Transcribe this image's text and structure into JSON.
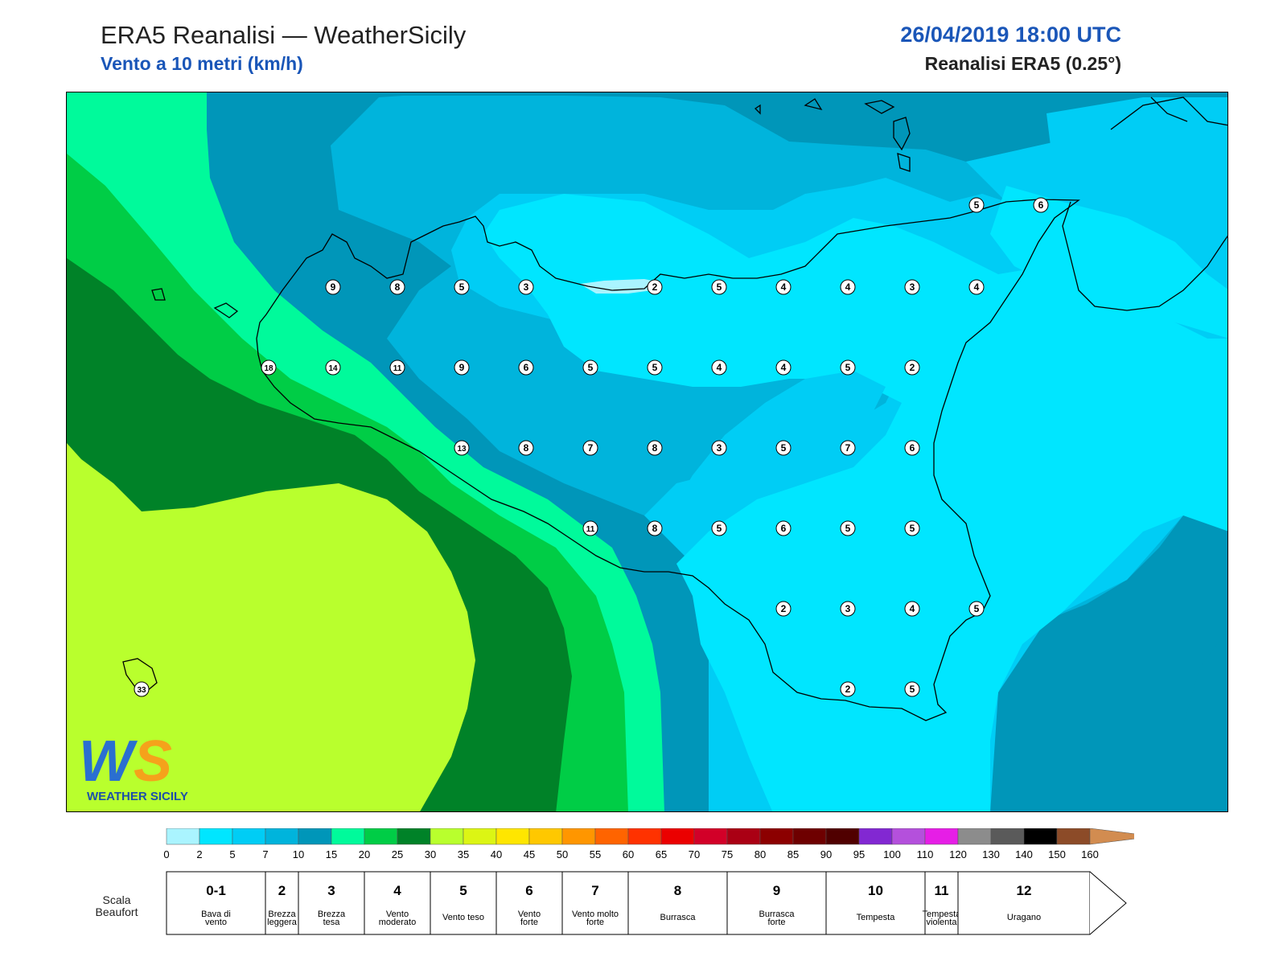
{
  "header": {
    "title": "ERA5 Reanalisi — WeatherSicily",
    "subtitle": "Vento a 10 metri (km/h)",
    "datetime": "26/04/2019 18:00 UTC",
    "model": "Reanalisi ERA5 (0.25°)"
  },
  "logo": {
    "letters": "WS",
    "text": "WEATHER SICILY",
    "colors": {
      "w": "#2a6fd0",
      "s": "#f5a21b",
      "text": "#1d4fa8"
    }
  },
  "map_colors": {
    "light_cyan": "#aaf4ff",
    "cyan": "#00e6ff",
    "sky": "#00cdf5",
    "mid_blue": "#00b4dc",
    "teal": "#0096b9",
    "aqua_green": "#00fa9b",
    "green": "#00cd46",
    "dark_green": "#008228",
    "lime": "#b9ff2d",
    "coast": "#000000"
  },
  "stations": [
    {
      "v": "9",
      "c": [
        413,
        356
      ]
    },
    {
      "v": "8",
      "c": [
        493,
        356
      ]
    },
    {
      "v": "5",
      "c": [
        573,
        356
      ]
    },
    {
      "v": "3",
      "c": [
        653,
        356
      ]
    },
    {
      "v": "2",
      "c": [
        813,
        356
      ]
    },
    {
      "v": "5",
      "c": [
        893,
        356
      ]
    },
    {
      "v": "4",
      "c": [
        973,
        356
      ]
    },
    {
      "v": "4",
      "c": [
        1053,
        356
      ]
    },
    {
      "v": "3",
      "c": [
        1133,
        356
      ]
    },
    {
      "v": "4",
      "c": [
        1213,
        356
      ]
    },
    {
      "v": "18",
      "c": [
        333,
        456
      ]
    },
    {
      "v": "14",
      "c": [
        413,
        456
      ]
    },
    {
      "v": "11",
      "c": [
        493,
        456
      ]
    },
    {
      "v": "9",
      "c": [
        573,
        456
      ]
    },
    {
      "v": "6",
      "c": [
        653,
        456
      ]
    },
    {
      "v": "5",
      "c": [
        733,
        456
      ]
    },
    {
      "v": "5",
      "c": [
        813,
        456
      ]
    },
    {
      "v": "4",
      "c": [
        893,
        456
      ]
    },
    {
      "v": "4",
      "c": [
        973,
        456
      ]
    },
    {
      "v": "5",
      "c": [
        1053,
        456
      ]
    },
    {
      "v": "2",
      "c": [
        1133,
        456
      ]
    },
    {
      "v": "13",
      "c": [
        573,
        556
      ]
    },
    {
      "v": "8",
      "c": [
        653,
        556
      ]
    },
    {
      "v": "7",
      "c": [
        733,
        556
      ]
    },
    {
      "v": "8",
      "c": [
        813,
        556
      ]
    },
    {
      "v": "3",
      "c": [
        893,
        556
      ]
    },
    {
      "v": "5",
      "c": [
        973,
        556
      ]
    },
    {
      "v": "7",
      "c": [
        1053,
        556
      ]
    },
    {
      "v": "6",
      "c": [
        1133,
        556
      ]
    },
    {
      "v": "11",
      "c": [
        733,
        656
      ]
    },
    {
      "v": "8",
      "c": [
        813,
        656
      ]
    },
    {
      "v": "5",
      "c": [
        893,
        656
      ]
    },
    {
      "v": "6",
      "c": [
        973,
        656
      ]
    },
    {
      "v": "5",
      "c": [
        1053,
        656
      ]
    },
    {
      "v": "5",
      "c": [
        1133,
        656
      ]
    },
    {
      "v": "2",
      "c": [
        973,
        756
      ]
    },
    {
      "v": "3",
      "c": [
        1053,
        756
      ]
    },
    {
      "v": "4",
      "c": [
        1133,
        756
      ]
    },
    {
      "v": "5",
      "c": [
        1213,
        756
      ]
    },
    {
      "v": "2",
      "c": [
        1053,
        856
      ]
    },
    {
      "v": "5",
      "c": [
        1133,
        856
      ]
    },
    {
      "v": "5",
      "c": [
        1213,
        254
      ]
    },
    {
      "v": "6",
      "c": [
        1293,
        254
      ]
    },
    {
      "v": "33",
      "c": [
        175,
        856
      ]
    }
  ],
  "colorbar": {
    "bins": [
      {
        "from": "0",
        "color": "#aaf4ff"
      },
      {
        "from": "2",
        "color": "#00e6ff"
      },
      {
        "from": "5",
        "color": "#00cdf5"
      },
      {
        "from": "7",
        "color": "#00b4dc"
      },
      {
        "from": "10",
        "color": "#0096b9"
      },
      {
        "from": "15",
        "color": "#00fa9b"
      },
      {
        "from": "20",
        "color": "#00cd46"
      },
      {
        "from": "25",
        "color": "#008228"
      },
      {
        "from": "30",
        "color": "#b9ff2d"
      },
      {
        "from": "35",
        "color": "#dcf514"
      },
      {
        "from": "40",
        "color": "#ffe600"
      },
      {
        "from": "45",
        "color": "#ffc800"
      },
      {
        "from": "50",
        "color": "#ff9600"
      },
      {
        "from": "55",
        "color": "#ff6400"
      },
      {
        "from": "60",
        "color": "#ff3200"
      },
      {
        "from": "65",
        "color": "#eb0000"
      },
      {
        "from": "70",
        "color": "#d20028"
      },
      {
        "from": "75",
        "color": "#aa0014"
      },
      {
        "from": "80",
        "color": "#8c0000"
      },
      {
        "from": "85",
        "color": "#6e0000"
      },
      {
        "from": "90",
        "color": "#500000"
      },
      {
        "from": "95",
        "color": "#8228d2"
      },
      {
        "from": "100",
        "color": "#b450dc"
      },
      {
        "from": "110",
        "color": "#e61ee6"
      },
      {
        "from": "120",
        "color": "#8c8c8c"
      },
      {
        "from": "130",
        "color": "#5a5a5a"
      },
      {
        "from": "140",
        "color": "#000000"
      },
      {
        "from": "150",
        "color": "#8c4b28"
      },
      {
        "from": "160",
        "color": "#d28c50"
      }
    ],
    "last_tick": "160"
  },
  "beaufort": {
    "label": "Scala\nBeaufort",
    "classes": [
      {
        "force": "0-1",
        "name": "Bava di\nvento",
        "from": "0"
      },
      {
        "force": "2",
        "name": "Brezza\nleggera",
        "from": "7"
      },
      {
        "force": "3",
        "name": "Brezza\ntesa",
        "from": "10"
      },
      {
        "force": "4",
        "name": "Vento\nmoderato",
        "from": "20"
      },
      {
        "force": "5",
        "name": "Vento teso",
        "from": "30"
      },
      {
        "force": "6",
        "name": "Vento\nforte",
        "from": "40"
      },
      {
        "force": "7",
        "name": "Vento molto\nforte",
        "from": "50"
      },
      {
        "force": "8",
        "name": "Burrasca",
        "from": "60"
      },
      {
        "force": "9",
        "name": "Burrasca\nforte",
        "from": "75"
      },
      {
        "force": "10",
        "name": "Tempesta",
        "from": "90"
      },
      {
        "force": "11",
        "name": "Tempesta\nviolenta",
        "from": "110"
      },
      {
        "force": "12",
        "name": "Uragano",
        "from": "120"
      }
    ]
  }
}
